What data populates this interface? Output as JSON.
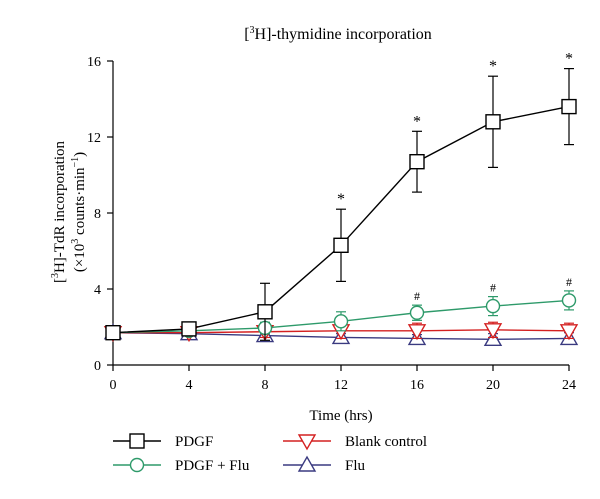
{
  "chart_data": {
    "type": "line",
    "title_pre": "[",
    "title_sup": "3",
    "title_post": "H]-thymidine incorporation",
    "ylabel_line1_pre": "[",
    "ylabel_line1_sup": "3",
    "ylabel_line1_post": "H]-TdR incorporation",
    "ylabel_line2_pre": "(×10",
    "ylabel_line2_sup1": "3",
    "ylabel_line2_mid": " counts·min",
    "ylabel_line2_sup2": "−1",
    "ylabel_line2_post": ")",
    "xlabel": "Time (hrs)",
    "x": [
      0,
      4,
      8,
      12,
      16,
      20,
      24
    ],
    "xlim": [
      0,
      24
    ],
    "ylim": [
      0,
      16
    ],
    "xticks": [
      "0",
      "4",
      "8",
      "12",
      "16",
      "20",
      "24"
    ],
    "yticks": [
      "0",
      "4",
      "8",
      "12",
      "16"
    ],
    "grid": false,
    "legend_position": "bottom",
    "series": [
      {
        "name": "PDGF",
        "color": "#000000",
        "marker": "square",
        "values": [
          1.7,
          1.9,
          2.8,
          6.3,
          10.7,
          12.8,
          13.6
        ],
        "errors": [
          0.1,
          0.15,
          1.5,
          1.9,
          1.6,
          2.4,
          2.0
        ],
        "annotations": [
          null,
          null,
          null,
          "*",
          "*",
          "*",
          "*"
        ]
      },
      {
        "name": "PDGF + Flu",
        "color": "#2e9a6a",
        "marker": "circle",
        "values": [
          1.7,
          1.8,
          1.95,
          2.3,
          2.75,
          3.1,
          3.4
        ],
        "errors": [
          0.1,
          0.1,
          0.3,
          0.5,
          0.4,
          0.5,
          0.5
        ],
        "annotations": [
          null,
          null,
          null,
          null,
          "#",
          "#",
          "#"
        ]
      },
      {
        "name": "Blank control",
        "color": "#d42020",
        "marker": "triangle-down",
        "values": [
          1.7,
          1.7,
          1.75,
          1.8,
          1.8,
          1.85,
          1.8
        ],
        "errors": [
          0.1,
          0.1,
          0.3,
          0.4,
          0.4,
          0.4,
          0.4
        ],
        "annotations": [
          null,
          null,
          null,
          null,
          null,
          null,
          null
        ]
      },
      {
        "name": "Flu",
        "color": "#3a3a80",
        "marker": "triangle-up",
        "values": [
          1.7,
          1.65,
          1.55,
          1.45,
          1.4,
          1.35,
          1.4
        ],
        "errors": [
          0.1,
          0.1,
          0.15,
          0.2,
          0.2,
          0.3,
          0.3
        ],
        "annotations": [
          null,
          null,
          null,
          null,
          null,
          null,
          null
        ]
      }
    ]
  }
}
